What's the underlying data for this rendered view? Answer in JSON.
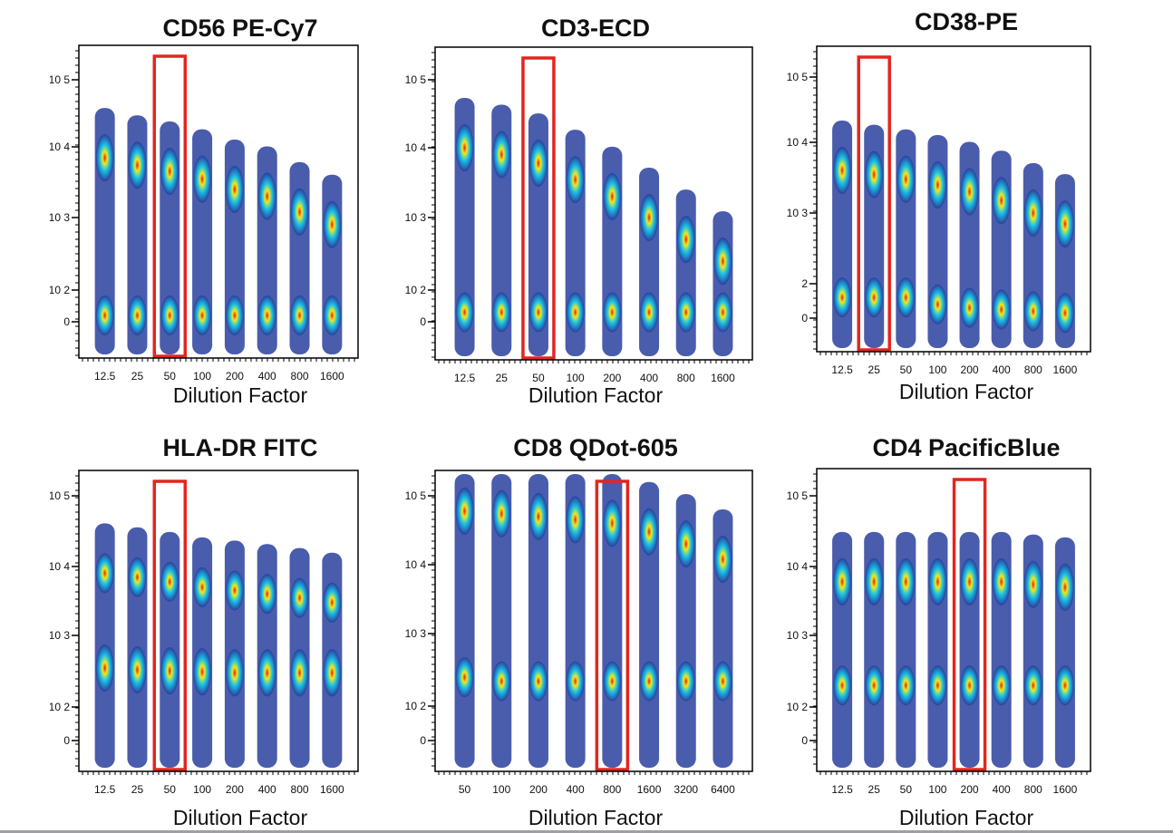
{
  "colors": {
    "density_low": "#2a3f9e",
    "density_mid": "#19c3e6",
    "density_high": "#f2e81c",
    "density_peak": "#e5201c",
    "highlight_box": "#e2261f",
    "frame": "#000000"
  },
  "chart_data": [
    {
      "type": "scatter",
      "subtype": "density-dot-plot",
      "title": "CD56 PE-Cy7",
      "xlabel": "Dilution Factor",
      "ylabel": "",
      "y_scale": "biexponential",
      "y_ticks": [
        "10 5",
        "10 4",
        "10 3",
        "10 2",
        "0"
      ],
      "categories": [
        "12.5",
        "25",
        "50",
        "100",
        "200",
        "400",
        "800",
        "1600"
      ],
      "highlighted_category": "50",
      "series": [
        {
          "values": [
            7000,
            5500,
            4500,
            3500,
            2500,
            2000,
            1200,
            800
          ]
        },
        {
          "values": [
            20,
            20,
            20,
            20,
            20,
            20,
            20,
            20
          ]
        }
      ]
    },
    {
      "type": "scatter",
      "subtype": "density-dot-plot",
      "title": "CD3-ECD",
      "xlabel": "Dilution Factor",
      "ylabel": "",
      "y_scale": "biexponential",
      "y_ticks": [
        "10 5",
        "10 4",
        "10 3",
        "10 2",
        "0"
      ],
      "categories": [
        "12.5",
        "25",
        "50",
        "100",
        "200",
        "400",
        "800",
        "1600"
      ],
      "highlighted_category": "50",
      "series": [
        {
          "values": [
            10000,
            8000,
            6000,
            3500,
            2000,
            1000,
            500,
            250
          ]
        },
        {
          "values": [
            30,
            30,
            30,
            30,
            30,
            30,
            30,
            30
          ]
        }
      ]
    },
    {
      "type": "scatter",
      "subtype": "density-dot-plot",
      "title": "CD38-PE",
      "xlabel": "Dilution Factor",
      "ylabel": "",
      "y_scale": "biexponential",
      "y_ticks": [
        "10 5",
        "10 4",
        "10 3",
        "2",
        "0"
      ],
      "categories": [
        "12.5",
        "25",
        "50",
        "100",
        "200",
        "400",
        "800",
        "1600"
      ],
      "highlighted_category": "25",
      "series": [
        {
          "values": [
            4000,
            3500,
            3000,
            2500,
            2000,
            1500,
            1000,
            700
          ]
        },
        {
          "values": [
            60,
            60,
            60,
            40,
            30,
            25,
            20,
            15
          ]
        }
      ]
    },
    {
      "type": "scatter",
      "subtype": "density-dot-plot",
      "title": "HLA-DR FITC",
      "xlabel": "Dilution Factor",
      "ylabel": "",
      "y_scale": "biexponential",
      "y_ticks": [
        "10 5",
        "10 4",
        "10 3",
        "10 2",
        "0"
      ],
      "categories": [
        "12.5",
        "25",
        "50",
        "100",
        "200",
        "400",
        "800",
        "1600"
      ],
      "highlighted_category": "50",
      "series": [
        {
          "values": [
            350,
            330,
            320,
            310,
            300,
            300,
            300,
            300
          ]
        },
        {
          "values": [
            8000,
            7000,
            6000,
            5000,
            4500,
            4000,
            3500,
            3000
          ]
        }
      ]
    },
    {
      "type": "scatter",
      "subtype": "density-dot-plot",
      "title": "CD8 QDot-605",
      "xlabel": "Dilution Factor",
      "ylabel": "",
      "y_scale": "biexponential",
      "y_ticks": [
        "10 5",
        "10 4",
        "10 3",
        "10 2",
        "0"
      ],
      "categories": [
        "50",
        "100",
        "200",
        "400",
        "800",
        "1600",
        "3200",
        "6400"
      ],
      "highlighted_category": "800",
      "series": [
        {
          "values": [
            60000,
            55000,
            50000,
            45000,
            40000,
            30000,
            20000,
            12000
          ]
        },
        {
          "values": [
            250,
            220,
            220,
            220,
            220,
            220,
            220,
            220
          ]
        }
      ]
    },
    {
      "type": "scatter",
      "subtype": "density-dot-plot",
      "title": "CD4 PacificBlue",
      "xlabel": "Dilution Factor",
      "ylabel": "",
      "y_scale": "biexponential",
      "y_ticks": [
        "10 5",
        "10 4",
        "10 3",
        "10 2",
        "0"
      ],
      "categories": [
        "12.5",
        "25",
        "50",
        "100",
        "200",
        "400",
        "800",
        "1600"
      ],
      "highlighted_category": "200",
      "series": [
        {
          "values": [
            6000,
            6000,
            6000,
            6000,
            6000,
            6000,
            5500,
            5000
          ]
        },
        {
          "values": [
            200,
            200,
            200,
            200,
            200,
            200,
            200,
            200
          ]
        }
      ]
    }
  ]
}
